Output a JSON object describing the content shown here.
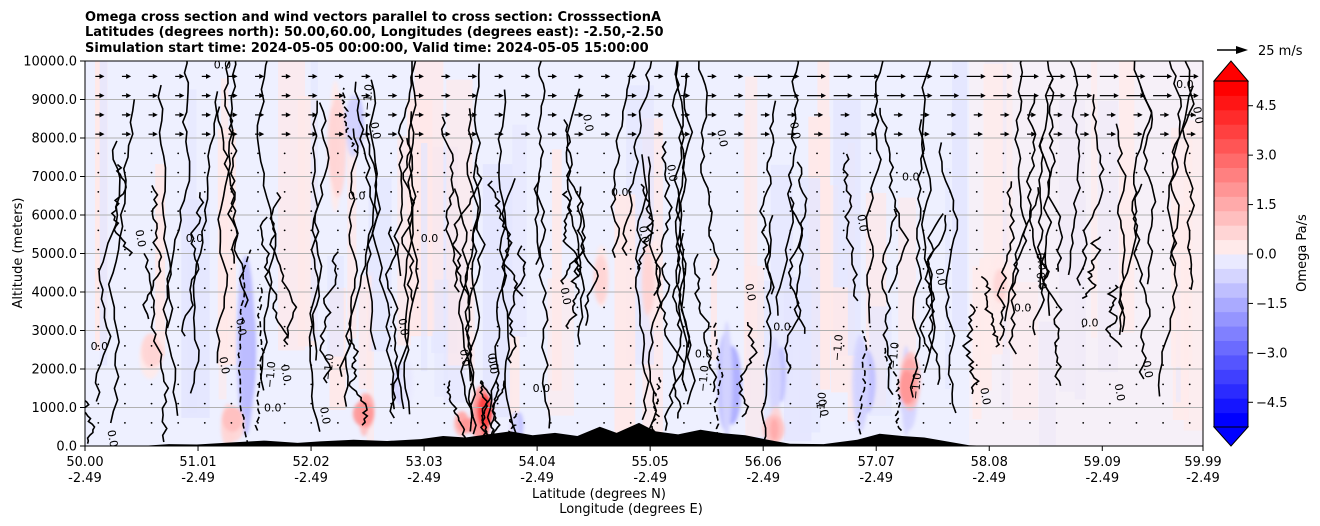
{
  "chart_data": {
    "type": "heatmap",
    "title": [
      "Omega cross section and wind vectors parallel to cross section: CrosssectionA",
      "Latitudes (degrees north): 50.00,60.00, Longitudes (degrees east): -2.50,-2.50",
      "Simulation start time: 2024-05-05 00:00:00, Valid time: 2024-05-05 15:00:00"
    ],
    "ylabel": "Altitude (meters)",
    "xlabel_1": "Latitude (degrees N)",
    "xlabel_2": "Longitude (degrees E)",
    "ylim": [
      0,
      10000
    ],
    "yticks": [
      "0.0",
      "1000.0",
      "2000.0",
      "3000.0",
      "4000.0",
      "5000.0",
      "6000.0",
      "7000.0",
      "8000.0",
      "9000.0",
      "10000.0"
    ],
    "xticks": [
      {
        "lat": "50.00",
        "lon": "-2.49"
      },
      {
        "lat": "51.01",
        "lon": "-2.49"
      },
      {
        "lat": "52.02",
        "lon": "-2.49"
      },
      {
        "lat": "53.03",
        "lon": "-2.49"
      },
      {
        "lat": "54.04",
        "lon": "-2.49"
      },
      {
        "lat": "55.05",
        "lon": "-2.49"
      },
      {
        "lat": "56.06",
        "lon": "-2.49"
      },
      {
        "lat": "57.07",
        "lon": "-2.49"
      },
      {
        "lat": "58.08",
        "lon": "-2.49"
      },
      {
        "lat": "59.09",
        "lon": "-2.49"
      },
      {
        "lat": "59.99",
        "lon": "-2.49"
      }
    ],
    "colorbar": {
      "label": "Omega Pa/s",
      "range": [
        -5.25,
        5.25
      ],
      "ticks": [
        "4.5",
        "3.0",
        "1.5",
        "0.0",
        "−1.5",
        "−3.0",
        "−4.5"
      ],
      "tick_values": [
        4.5,
        3.0,
        1.5,
        0.0,
        -1.5,
        -3.0,
        -4.5
      ],
      "colors_low_to_high": [
        "#0000ff",
        "#1515ff",
        "#2b2bff",
        "#4040ff",
        "#5555ff",
        "#6b6bff",
        "#8080ff",
        "#9595ff",
        "#aaaaff",
        "#bfbfff",
        "#d5d5ff",
        "#eaeaff",
        "#ffeaea",
        "#ffd5d5",
        "#ffbfbf",
        "#ffaaaa",
        "#ff9595",
        "#ff8080",
        "#ff6b6b",
        "#ff5555",
        "#ff4040",
        "#ff2b2b",
        "#ff1515",
        "#ff0000"
      ],
      "under_color": "#0000ff",
      "over_color": "#ff0000"
    },
    "quiver_key": {
      "label": "25 m/s"
    },
    "contour_labels": [
      "0.0",
      "−1.0"
    ],
    "blue_features": [
      {
        "lat": 51.45,
        "alt_low": 0,
        "alt_high": 5200,
        "intensity": 2.2
      },
      {
        "lat": 52.4,
        "alt_low": 7500,
        "alt_high": 9300,
        "intensity": 1.2
      },
      {
        "lat": 55.75,
        "alt_low": 0,
        "alt_high": 3400,
        "intensity": 1.5
      },
      {
        "lat": 56.2,
        "alt_low": 600,
        "alt_high": 3000,
        "intensity": 1.0
      },
      {
        "lat": 56.95,
        "alt_low": 200,
        "alt_high": 3000,
        "intensity": 1.2
      },
      {
        "lat": 57.35,
        "alt_low": 200,
        "alt_high": 2800,
        "intensity": 1.0
      },
      {
        "lat": 52.85,
        "alt_low": 1000,
        "alt_high": 2400,
        "intensity": 0.8
      },
      {
        "lat": 53.85,
        "alt_low": 0,
        "alt_high": 900,
        "intensity": 1.6
      }
    ],
    "red_features": [
      {
        "lat": 53.55,
        "alt_low": 0,
        "alt_high": 1600,
        "intensity": 3.2
      },
      {
        "lat": 53.4,
        "alt_low": 200,
        "alt_high": 900,
        "intensity": 1.8
      },
      {
        "lat": 52.5,
        "alt_low": 300,
        "alt_high": 1500,
        "intensity": 1.6
      },
      {
        "lat": 52.25,
        "alt_low": 6000,
        "alt_high": 9600,
        "intensity": 0.6
      },
      {
        "lat": 56.15,
        "alt_low": 0,
        "alt_high": 1000,
        "intensity": 1.4
      },
      {
        "lat": 57.35,
        "alt_low": 800,
        "alt_high": 2400,
        "intensity": 1.8
      },
      {
        "lat": 51.3,
        "alt_low": 0,
        "alt_high": 1200,
        "intensity": 1.0
      },
      {
        "lat": 55.05,
        "alt_low": 3000,
        "alt_high": 5500,
        "intensity": 0.6
      },
      {
        "lat": 54.6,
        "alt_low": 3500,
        "alt_high": 5200,
        "intensity": 0.6
      },
      {
        "lat": 50.6,
        "alt_low": 1800,
        "alt_high": 3000,
        "intensity": 0.6
      },
      {
        "lat": 58.2,
        "alt_low": 3400,
        "alt_high": 5000,
        "intensity": 0.5
      }
    ],
    "terrain": [
      {
        "lat": 50.0,
        "alt": 0
      },
      {
        "lat": 50.5,
        "alt": 0
      },
      {
        "lat": 50.75,
        "alt": 50
      },
      {
        "lat": 51.0,
        "alt": 40
      },
      {
        "lat": 51.3,
        "alt": 90
      },
      {
        "lat": 51.6,
        "alt": 140
      },
      {
        "lat": 51.9,
        "alt": 80
      },
      {
        "lat": 52.1,
        "alt": 120
      },
      {
        "lat": 52.4,
        "alt": 160
      },
      {
        "lat": 52.7,
        "alt": 130
      },
      {
        "lat": 53.0,
        "alt": 180
      },
      {
        "lat": 53.2,
        "alt": 260
      },
      {
        "lat": 53.4,
        "alt": 220
      },
      {
        "lat": 53.6,
        "alt": 300
      },
      {
        "lat": 53.8,
        "alt": 380
      },
      {
        "lat": 54.0,
        "alt": 280
      },
      {
        "lat": 54.2,
        "alt": 340
      },
      {
        "lat": 54.4,
        "alt": 260
      },
      {
        "lat": 54.6,
        "alt": 500
      },
      {
        "lat": 54.75,
        "alt": 340
      },
      {
        "lat": 54.95,
        "alt": 600
      },
      {
        "lat": 55.1,
        "alt": 380
      },
      {
        "lat": 55.3,
        "alt": 300
      },
      {
        "lat": 55.5,
        "alt": 420
      },
      {
        "lat": 55.7,
        "alt": 330
      },
      {
        "lat": 55.9,
        "alt": 280
      },
      {
        "lat": 56.1,
        "alt": 160
      },
      {
        "lat": 56.3,
        "alt": 60
      },
      {
        "lat": 56.6,
        "alt": 50
      },
      {
        "lat": 56.9,
        "alt": 160
      },
      {
        "lat": 57.1,
        "alt": 320
      },
      {
        "lat": 57.3,
        "alt": 260
      },
      {
        "lat": 57.5,
        "alt": 220
      },
      {
        "lat": 57.7,
        "alt": 120
      },
      {
        "lat": 57.9,
        "alt": 20
      },
      {
        "lat": 58.1,
        "alt": 0
      },
      {
        "lat": 59.99,
        "alt": 0
      }
    ]
  }
}
